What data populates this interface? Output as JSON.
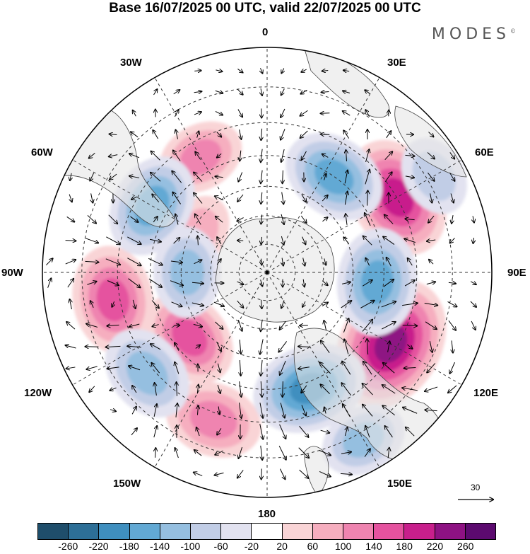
{
  "title": "Base 16/07/2025 00 UTC, valid 22/07/2025 00 UTC",
  "brand": "MODES",
  "brand_mark": "©",
  "longitude_labels": {
    "lon_0": "0",
    "lon_30e": "30E",
    "lon_60e": "60E",
    "lon_90e": "90E",
    "lon_120e": "120E",
    "lon_150e": "150E",
    "lon_180": "180",
    "lon_150w": "150W",
    "lon_120w": "120W",
    "lon_90w": "90W",
    "lon_60w": "60W",
    "lon_30w": "30W"
  },
  "vector_scale": {
    "label": "30"
  },
  "colorbar": {
    "colors": [
      "#1f4e6b",
      "#2d6f97",
      "#3f8fbf",
      "#62a9d4",
      "#95bfe0",
      "#c1cde6",
      "#e2e2f0",
      "#ffffff",
      "#f9d4d6",
      "#f6aebf",
      "#ef84b0",
      "#e5529f",
      "#c81f8c",
      "#8e1283",
      "#5c0a6f"
    ],
    "ticks": [
      "-260",
      "-220",
      "-180",
      "-140",
      "-100",
      "-60",
      "-20",
      "20",
      "60",
      "100",
      "140",
      "180",
      "220",
      "260"
    ]
  },
  "map": {
    "projection": "south polar stereographic",
    "anomalies": [
      {
        "lon": 60,
        "lat": -40,
        "value": 200
      },
      {
        "lon": 120,
        "lat": -42,
        "value": 240
      },
      {
        "lon": -100,
        "lat": -38,
        "value": 160
      },
      {
        "lon": -30,
        "lat": -45,
        "value": 100
      },
      {
        "lon": -160,
        "lat": -38,
        "value": 130
      },
      {
        "lon": -130,
        "lat": -55,
        "value": 140
      },
      {
        "lon": -60,
        "lat": -62,
        "value": 70
      },
      {
        "lon": 35,
        "lat": -50,
        "value": -150
      },
      {
        "lon": 95,
        "lat": -52,
        "value": -160
      },
      {
        "lon": 160,
        "lat": -48,
        "value": -180
      },
      {
        "lon": -60,
        "lat": -45,
        "value": -150
      },
      {
        "lon": -130,
        "lat": -38,
        "value": -130
      },
      {
        "lon": -90,
        "lat": -62,
        "value": -110
      },
      {
        "lon": 150,
        "lat": -28,
        "value": -100
      },
      {
        "lon": 60,
        "lat": -28,
        "value": -80
      }
    ]
  }
}
